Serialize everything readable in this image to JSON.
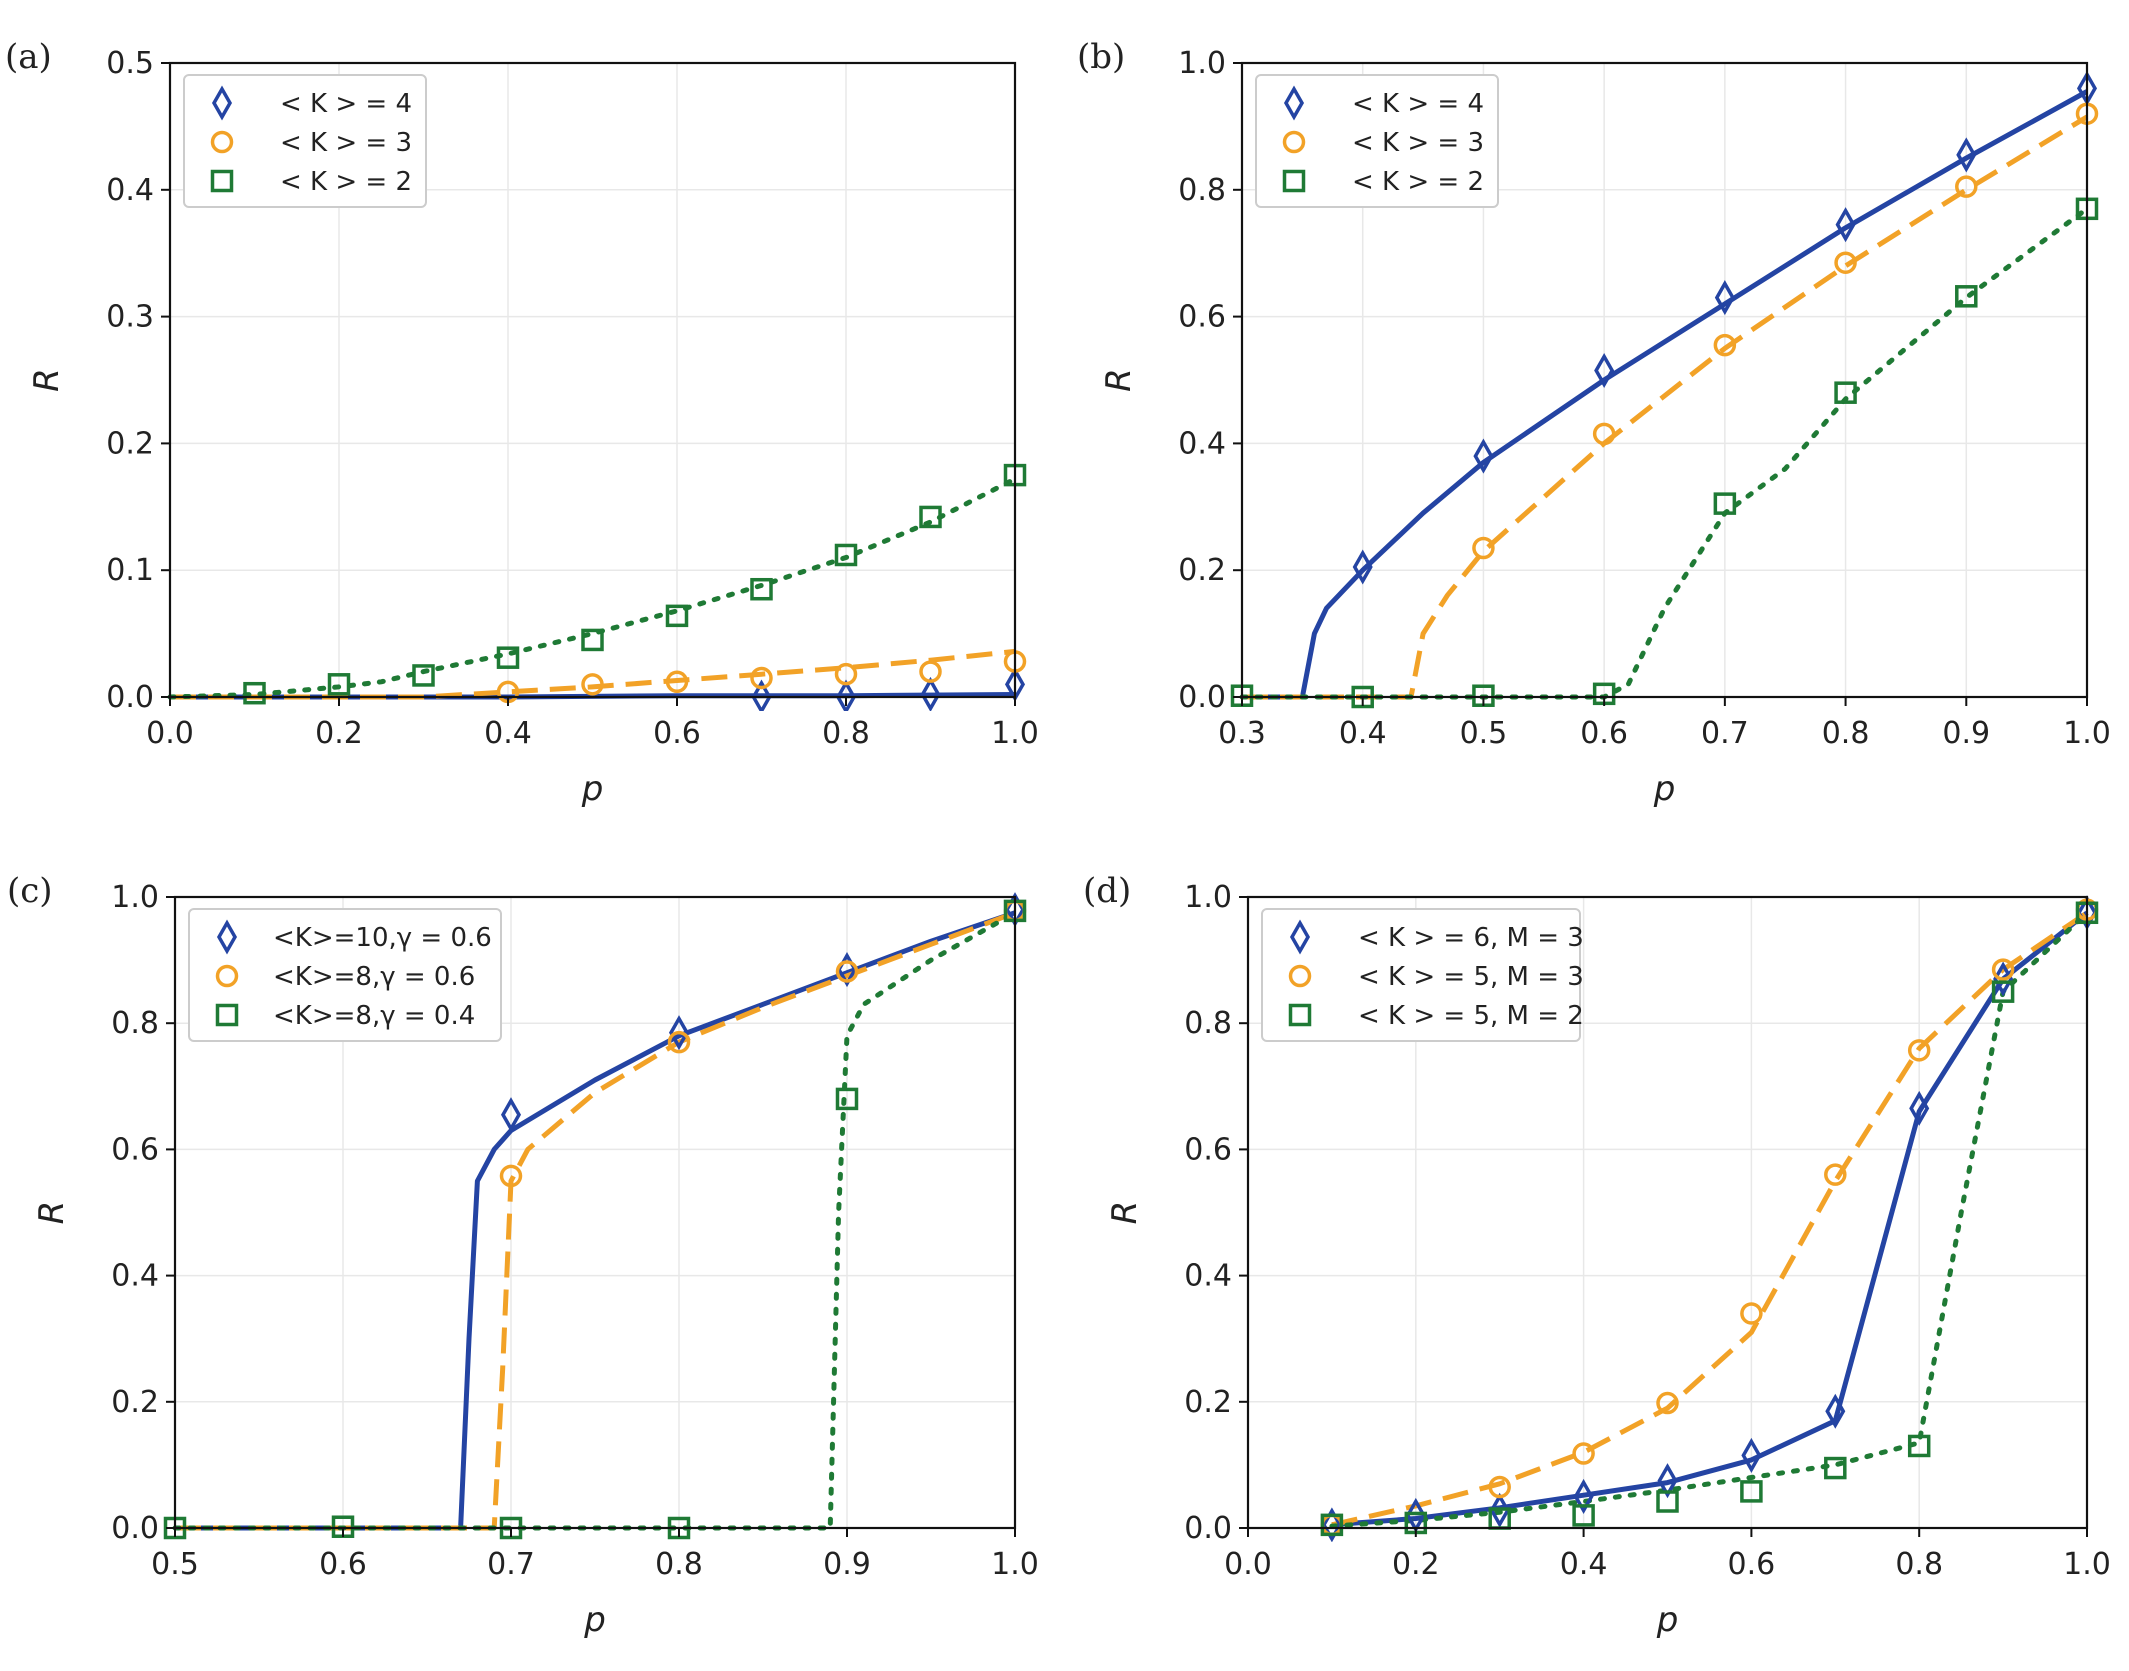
{
  "colors": {
    "blue": "#2444a3",
    "orange": "#f2a227",
    "green": "#1f7a35",
    "grid": "#e8e8e8"
  },
  "chart_data": [
    {
      "panel_label": "(a)",
      "type": "line",
      "xlabel": "p",
      "ylabel": "R",
      "xlim": [
        0.0,
        1.0
      ],
      "ylim": [
        0.0,
        0.5
      ],
      "xticks": [
        "0.0",
        "0.2",
        "0.4",
        "0.6",
        "0.8",
        "1.0"
      ],
      "yticks": [
        "0.0",
        "0.1",
        "0.2",
        "0.3",
        "0.4",
        "0.5"
      ],
      "grid": true,
      "legend_position": "top-left",
      "series": [
        {
          "name": "< K > = 4",
          "color": "blue",
          "line_style": "solid",
          "marker": "diamond",
          "line": [
            [
              0,
              0
            ],
            [
              0.2,
              0
            ],
            [
              0.4,
              0
            ],
            [
              0.6,
              0.001
            ],
            [
              0.8,
              0.001
            ],
            [
              1.0,
              0.002
            ]
          ],
          "points": [
            [
              0.7,
              0.0
            ],
            [
              0.8,
              0.0
            ],
            [
              0.9,
              0.002
            ],
            [
              1.0,
              0.01
            ]
          ]
        },
        {
          "name": "< K > = 3",
          "color": "orange",
          "line_style": "dashed",
          "marker": "circle",
          "line": [
            [
              0,
              0
            ],
            [
              0.3,
              0.0
            ],
            [
              0.4,
              0.004
            ],
            [
              0.5,
              0.008
            ],
            [
              0.6,
              0.013
            ],
            [
              0.7,
              0.018
            ],
            [
              0.8,
              0.023
            ],
            [
              0.9,
              0.029
            ],
            [
              1.0,
              0.036
            ]
          ],
          "points": [
            [
              0.4,
              0.004
            ],
            [
              0.5,
              0.01
            ],
            [
              0.6,
              0.012
            ],
            [
              0.7,
              0.015
            ],
            [
              0.8,
              0.018
            ],
            [
              0.9,
              0.02
            ],
            [
              1.0,
              0.028
            ]
          ]
        },
        {
          "name": "< K > = 2",
          "color": "green",
          "line_style": "dotted",
          "marker": "square",
          "line": [
            [
              0,
              0
            ],
            [
              0.1,
              0.002
            ],
            [
              0.2,
              0.008
            ],
            [
              0.25,
              0.012
            ],
            [
              0.3,
              0.02
            ],
            [
              0.4,
              0.034
            ],
            [
              0.5,
              0.05
            ],
            [
              0.6,
              0.068
            ],
            [
              0.7,
              0.088
            ],
            [
              0.8,
              0.11
            ],
            [
              0.9,
              0.138
            ],
            [
              1.0,
              0.172
            ]
          ],
          "points": [
            [
              0.1,
              0.003
            ],
            [
              0.2,
              0.01
            ],
            [
              0.3,
              0.017
            ],
            [
              0.4,
              0.031
            ],
            [
              0.5,
              0.045
            ],
            [
              0.6,
              0.064
            ],
            [
              0.7,
              0.085
            ],
            [
              0.8,
              0.112
            ],
            [
              0.9,
              0.142
            ],
            [
              1.0,
              0.175
            ]
          ]
        }
      ]
    },
    {
      "panel_label": "(b)",
      "type": "line",
      "xlabel": "p",
      "ylabel": "R",
      "xlim": [
        0.3,
        1.0
      ],
      "ylim": [
        0.0,
        1.0
      ],
      "xticks": [
        "0.3",
        "0.4",
        "0.5",
        "0.6",
        "0.7",
        "0.8",
        "0.9",
        "1.0"
      ],
      "yticks": [
        "0.0",
        "0.2",
        "0.4",
        "0.6",
        "0.8",
        "1.0"
      ],
      "grid": true,
      "legend_position": "top-left",
      "series": [
        {
          "name": "< K > = 4",
          "color": "blue",
          "line_style": "solid",
          "marker": "diamond",
          "line": [
            [
              0.3,
              0
            ],
            [
              0.35,
              0
            ],
            [
              0.36,
              0.1
            ],
            [
              0.37,
              0.14
            ],
            [
              0.4,
              0.2
            ],
            [
              0.45,
              0.29
            ],
            [
              0.5,
              0.37
            ],
            [
              0.6,
              0.5
            ],
            [
              0.7,
              0.62
            ],
            [
              0.8,
              0.74
            ],
            [
              0.9,
              0.85
            ],
            [
              1.0,
              0.955
            ]
          ],
          "points": [
            [
              0.4,
              0.205
            ],
            [
              0.5,
              0.38
            ],
            [
              0.6,
              0.515
            ],
            [
              0.7,
              0.63
            ],
            [
              0.8,
              0.745
            ],
            [
              0.9,
              0.855
            ],
            [
              1.0,
              0.96
            ]
          ]
        },
        {
          "name": "< K > = 3",
          "color": "orange",
          "line_style": "dashed",
          "marker": "circle",
          "line": [
            [
              0.3,
              0
            ],
            [
              0.44,
              0
            ],
            [
              0.45,
              0.1
            ],
            [
              0.47,
              0.16
            ],
            [
              0.5,
              0.23
            ],
            [
              0.6,
              0.4
            ],
            [
              0.7,
              0.55
            ],
            [
              0.8,
              0.68
            ],
            [
              0.9,
              0.8
            ],
            [
              1.0,
              0.915
            ]
          ],
          "points": [
            [
              0.5,
              0.235
            ],
            [
              0.6,
              0.415
            ],
            [
              0.7,
              0.555
            ],
            [
              0.8,
              0.685
            ],
            [
              0.9,
              0.805
            ],
            [
              1.0,
              0.92
            ]
          ]
        },
        {
          "name": "< K > = 2",
          "color": "green",
          "line_style": "dotted",
          "marker": "square",
          "line": [
            [
              0.3,
              0
            ],
            [
              0.6,
              0
            ],
            [
              0.62,
              0.02
            ],
            [
              0.65,
              0.14
            ],
            [
              0.7,
              0.29
            ],
            [
              0.75,
              0.36
            ],
            [
              0.8,
              0.47
            ],
            [
              0.9,
              0.63
            ],
            [
              1.0,
              0.77
            ]
          ],
          "points": [
            [
              0.3,
              0.002
            ],
            [
              0.4,
              0.0
            ],
            [
              0.5,
              0.002
            ],
            [
              0.6,
              0.005
            ],
            [
              0.7,
              0.305
            ],
            [
              0.8,
              0.48
            ],
            [
              0.9,
              0.632
            ],
            [
              1.0,
              0.77
            ]
          ]
        }
      ]
    },
    {
      "panel_label": "(c)",
      "type": "line",
      "xlabel": "p",
      "ylabel": "R",
      "xlim": [
        0.5,
        1.0
      ],
      "ylim": [
        0.0,
        1.0
      ],
      "xticks": [
        "0.5",
        "0.6",
        "0.7",
        "0.8",
        "0.9",
        "1.0"
      ],
      "yticks": [
        "0.0",
        "0.2",
        "0.4",
        "0.6",
        "0.8",
        "1.0"
      ],
      "grid": true,
      "legend_position": "top-left",
      "series": [
        {
          "name": "<K>=10,γ = 0.6",
          "color": "blue",
          "line_style": "solid",
          "marker": "diamond",
          "line": [
            [
              0.5,
              0
            ],
            [
              0.67,
              0
            ],
            [
              0.675,
              0.3
            ],
            [
              0.68,
              0.55
            ],
            [
              0.69,
              0.6
            ],
            [
              0.7,
              0.63
            ],
            [
              0.75,
              0.71
            ],
            [
              0.8,
              0.78
            ],
            [
              0.85,
              0.83
            ],
            [
              0.9,
              0.88
            ],
            [
              0.95,
              0.93
            ],
            [
              1.0,
              0.975
            ]
          ],
          "points": [
            [
              0.7,
              0.655
            ],
            [
              0.8,
              0.785
            ],
            [
              0.9,
              0.885
            ],
            [
              1.0,
              0.98
            ]
          ]
        },
        {
          "name": "<K>=8,γ = 0.6",
          "color": "orange",
          "line_style": "dashed",
          "marker": "circle",
          "line": [
            [
              0.5,
              0
            ],
            [
              0.69,
              0
            ],
            [
              0.695,
              0.25
            ],
            [
              0.7,
              0.55
            ],
            [
              0.71,
              0.6
            ],
            [
              0.75,
              0.69
            ],
            [
              0.8,
              0.77
            ],
            [
              0.85,
              0.825
            ],
            [
              0.9,
              0.875
            ],
            [
              0.95,
              0.925
            ],
            [
              1.0,
              0.975
            ]
          ],
          "points": [
            [
              0.7,
              0.558
            ],
            [
              0.8,
              0.77
            ],
            [
              0.9,
              0.882
            ],
            [
              1.0,
              0.978
            ]
          ]
        },
        {
          "name": "<K>=8,γ = 0.4",
          "color": "green",
          "line_style": "dotted",
          "marker": "square",
          "line": [
            [
              0.5,
              0
            ],
            [
              0.89,
              0
            ],
            [
              0.895,
              0.5
            ],
            [
              0.9,
              0.78
            ],
            [
              0.91,
              0.83
            ],
            [
              0.95,
              0.9
            ],
            [
              1.0,
              0.975
            ]
          ],
          "points": [
            [
              0.5,
              0.0
            ],
            [
              0.6,
              0.002
            ],
            [
              0.7,
              0.0
            ],
            [
              0.8,
              0.0
            ],
            [
              0.9,
              0.68
            ],
            [
              1.0,
              0.978
            ]
          ]
        }
      ]
    },
    {
      "panel_label": "(d)",
      "type": "line",
      "xlabel": "p",
      "ylabel": "R",
      "xlim": [
        0.0,
        1.0
      ],
      "ylim": [
        0.0,
        1.0
      ],
      "xticks": [
        "0.0",
        "0.2",
        "0.4",
        "0.6",
        "0.8",
        "1.0"
      ],
      "yticks": [
        "0.0",
        "0.2",
        "0.4",
        "0.6",
        "0.8",
        "1.0"
      ],
      "grid": true,
      "legend_position": "top-left",
      "series": [
        {
          "name": "< K > = 6, M = 3",
          "color": "blue",
          "line_style": "solid",
          "marker": "diamond",
          "line": [
            [
              0.1,
              0.005
            ],
            [
              0.2,
              0.015
            ],
            [
              0.3,
              0.032
            ],
            [
              0.4,
              0.052
            ],
            [
              0.5,
              0.072
            ],
            [
              0.6,
              0.108
            ],
            [
              0.7,
              0.17
            ],
            [
              0.8,
              0.66
            ],
            [
              0.9,
              0.87
            ],
            [
              1.0,
              0.975
            ]
          ],
          "points": [
            [
              0.1,
              0.005
            ],
            [
              0.2,
              0.02
            ],
            [
              0.3,
              0.028
            ],
            [
              0.4,
              0.05
            ],
            [
              0.5,
              0.075
            ],
            [
              0.6,
              0.115
            ],
            [
              0.7,
              0.185
            ],
            [
              0.8,
              0.665
            ],
            [
              0.9,
              0.87
            ],
            [
              1.0,
              0.975
            ]
          ]
        },
        {
          "name": "< K > = 5, M = 3",
          "color": "orange",
          "line_style": "dashed",
          "marker": "circle",
          "line": [
            [
              0.1,
              0.005
            ],
            [
              0.2,
              0.035
            ],
            [
              0.3,
              0.07
            ],
            [
              0.4,
              0.12
            ],
            [
              0.5,
              0.19
            ],
            [
              0.6,
              0.31
            ],
            [
              0.7,
              0.55
            ],
            [
              0.8,
              0.76
            ],
            [
              0.9,
              0.885
            ],
            [
              1.0,
              0.975
            ]
          ],
          "points": [
            [
              0.1,
              0.005
            ],
            [
              0.3,
              0.065
            ],
            [
              0.4,
              0.118
            ],
            [
              0.5,
              0.198
            ],
            [
              0.6,
              0.34
            ],
            [
              0.7,
              0.56
            ],
            [
              0.8,
              0.757
            ],
            [
              0.9,
              0.885
            ],
            [
              1.0,
              0.98
            ]
          ]
        },
        {
          "name": "< K > = 5, M = 2",
          "color": "green",
          "line_style": "dotted",
          "marker": "square",
          "line": [
            [
              0.1,
              0.003
            ],
            [
              0.2,
              0.012
            ],
            [
              0.3,
              0.025
            ],
            [
              0.4,
              0.042
            ],
            [
              0.5,
              0.06
            ],
            [
              0.6,
              0.08
            ],
            [
              0.7,
              0.1
            ],
            [
              0.8,
              0.135
            ],
            [
              0.85,
              0.5
            ],
            [
              0.9,
              0.85
            ],
            [
              1.0,
              0.975
            ]
          ],
          "points": [
            [
              0.1,
              0.005
            ],
            [
              0.2,
              0.008
            ],
            [
              0.3,
              0.015
            ],
            [
              0.4,
              0.02
            ],
            [
              0.5,
              0.042
            ],
            [
              0.6,
              0.058
            ],
            [
              0.7,
              0.095
            ],
            [
              0.8,
              0.13
            ],
            [
              0.9,
              0.85
            ],
            [
              1.0,
              0.975
            ]
          ]
        }
      ]
    }
  ]
}
